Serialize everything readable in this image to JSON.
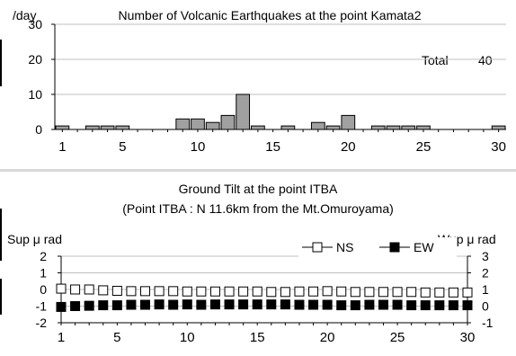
{
  "top_chart": {
    "title": "Number of Volcanic Earthquakes at the point Kamata2",
    "unit_label": "/day",
    "total_label": "Total",
    "total_value": "40"
  },
  "bottom_chart": {
    "title_line1": "Ground Tilt at the point ITBA",
    "title_line2": "(Point ITBA : N 11.6km from the Mt.Omuroyama)",
    "left_axis_label": "Sup μ rad",
    "right_axis_label": "Wup μ rad"
  },
  "colors": {
    "bar_fill": "#a0a0a0",
    "ns_fill": "#ffffff",
    "ew_fill": "#000000",
    "grid": "#bfbfbf"
  },
  "chart_data": [
    {
      "type": "bar",
      "title": "Number of Volcanic Earthquakes at the point Kamata2",
      "ylabel": "/day",
      "xlabel": "",
      "categories": [
        1,
        2,
        3,
        4,
        5,
        6,
        7,
        8,
        9,
        10,
        11,
        12,
        13,
        14,
        15,
        16,
        17,
        18,
        19,
        20,
        21,
        22,
        23,
        24,
        25,
        26,
        27,
        28,
        29,
        30
      ],
      "values": [
        1,
        0,
        1,
        1,
        1,
        0,
        0,
        0,
        3,
        3,
        2,
        4,
        10,
        1,
        0,
        1,
        0,
        2,
        1,
        4,
        0,
        1,
        1,
        1,
        1,
        0,
        0,
        0,
        0,
        1
      ],
      "ylim": [
        0,
        30
      ],
      "yticks": [
        0,
        10,
        20,
        30
      ],
      "xticks": [
        1,
        5,
        10,
        15,
        20,
        25,
        30
      ],
      "grid": true,
      "annotation": "Total 40"
    },
    {
      "type": "scatter",
      "title": "Ground Tilt at the point ITBA",
      "subtitle": "(Point ITBA : N 11.6km from the Mt.Omuroyama)",
      "ylabel": "Sup μ rad",
      "y2label": "Wup μ rad",
      "x": [
        1,
        2,
        3,
        4,
        5,
        6,
        7,
        8,
        9,
        10,
        11,
        12,
        13,
        14,
        15,
        16,
        17,
        18,
        19,
        20,
        21,
        22,
        23,
        24,
        25,
        26,
        27,
        28,
        29,
        30
      ],
      "ylim": [
        -2,
        2
      ],
      "yticks": [
        -2,
        -1,
        0,
        1,
        2
      ],
      "y2lim": [
        -1,
        3
      ],
      "y2ticks": [
        -1,
        0,
        1,
        2,
        3
      ],
      "xticks": [
        1,
        5,
        10,
        15,
        20,
        25,
        30
      ],
      "legend_position": "top-right",
      "grid": true,
      "series": [
        {
          "name": "NS",
          "axis": "left",
          "marker": "open-square",
          "values": [
            0.05,
            0.0,
            0.0,
            -0.05,
            -0.08,
            -0.1,
            -0.1,
            -0.1,
            -0.1,
            -0.12,
            -0.12,
            -0.12,
            -0.12,
            -0.12,
            -0.12,
            -0.15,
            -0.15,
            -0.12,
            -0.12,
            -0.1,
            -0.12,
            -0.15,
            -0.15,
            -0.15,
            -0.15,
            -0.15,
            -0.18,
            -0.18,
            -0.18,
            -0.18
          ]
        },
        {
          "name": "EW",
          "axis": "left",
          "marker": "filled-square",
          "values": [
            -1.05,
            -1.0,
            -0.98,
            -0.95,
            -0.95,
            -0.92,
            -0.92,
            -0.9,
            -0.92,
            -0.9,
            -0.92,
            -0.9,
            -0.9,
            -0.9,
            -0.9,
            -0.9,
            -0.9,
            -0.92,
            -0.92,
            -0.92,
            -0.95,
            -0.95,
            -0.92,
            -0.92,
            -0.92,
            -0.95,
            -0.95,
            -0.95,
            -0.95,
            -0.95
          ]
        }
      ]
    }
  ]
}
